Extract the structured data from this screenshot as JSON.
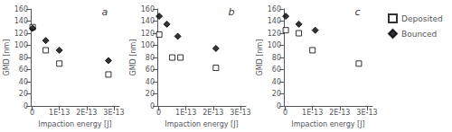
{
  "chart_data": [
    {
      "type": "scatter",
      "title": "a",
      "xlabel": "Impaction energy [J]",
      "ylabel": "GMD [nm]",
      "xlim": [
        -5e-15,
        3.2e-13
      ],
      "xticks": [
        0,
        {
          "value": 1e-13,
          "label": "1E-13"
        },
        {
          "value": 2e-13,
          "label": "2E-13"
        },
        {
          "value": 3e-13,
          "label": "3E-13"
        }
      ],
      "ylim": [
        0,
        160
      ],
      "yticks": [
        0,
        20,
        40,
        60,
        80,
        100,
        120,
        140,
        160
      ],
      "grid": false,
      "series": [
        {
          "name": "Deposited",
          "color": "black",
          "marker": "square-open",
          "x": [
            2e-15,
            5e-14,
            1e-13,
            2.8e-13
          ],
          "values": [
            130,
            92,
            70,
            52
          ]
        },
        {
          "name": "Bounced",
          "color": "black",
          "marker": "diamond",
          "x": [
            2e-15,
            5e-14,
            1e-13,
            2.8e-13
          ],
          "values": [
            128,
            108,
            92,
            75
          ]
        }
      ]
    },
    {
      "type": "scatter",
      "title": "b",
      "xlabel": "Impaction energy [J]",
      "ylabel": "GMD [nm]",
      "xlim": [
        -5e-15,
        3.2e-13
      ],
      "xticks": [
        0,
        {
          "value": 1e-13,
          "label": "1E-13"
        },
        {
          "value": 2e-13,
          "label": "2E-13"
        },
        {
          "value": 3e-13,
          "label": "3E-13"
        }
      ],
      "ylim": [
        0,
        160
      ],
      "yticks": [
        0,
        20,
        40,
        60,
        80,
        100,
        120,
        140,
        160
      ],
      "grid": false,
      "series": [
        {
          "name": "Deposited",
          "color": "black",
          "marker": "square-open",
          "x": [
            2e-15,
            5e-14,
            8e-14,
            2.1e-13
          ],
          "values": [
            118,
            80,
            80,
            63
          ]
        },
        {
          "name": "Bounced",
          "color": "black",
          "marker": "diamond",
          "x": [
            2e-15,
            3e-14,
            7e-14,
            2.1e-13
          ],
          "values": [
            148,
            135,
            115,
            95
          ]
        }
      ]
    },
    {
      "type": "scatter",
      "title": "c",
      "xlabel": "Impaction energy [J]",
      "ylabel": "GMD [nm]",
      "xlim": [
        -5e-15,
        3.2e-13
      ],
      "xticks": [
        0,
        {
          "value": 1e-13,
          "label": "1E-13"
        },
        {
          "value": 2e-13,
          "label": "2E-13"
        },
        {
          "value": 3e-13,
          "label": "3E-13"
        }
      ],
      "ylim": [
        0,
        160
      ],
      "yticks": [
        0,
        20,
        40,
        60,
        80,
        100,
        120,
        140,
        160
      ],
      "grid": false,
      "legend": "upper right",
      "series": [
        {
          "name": "Deposited",
          "color": "black",
          "marker": "square-open",
          "x": [
            2e-15,
            5e-14,
            1e-13,
            2.7e-13
          ],
          "values": [
            125,
            120,
            92,
            70
          ]
        },
        {
          "name": "Bounced",
          "color": "black",
          "marker": "diamond",
          "x": [
            2e-15,
            5e-14,
            1.1e-13
          ],
          "values": [
            148,
            135,
            125
          ]
        }
      ]
    }
  ]
}
